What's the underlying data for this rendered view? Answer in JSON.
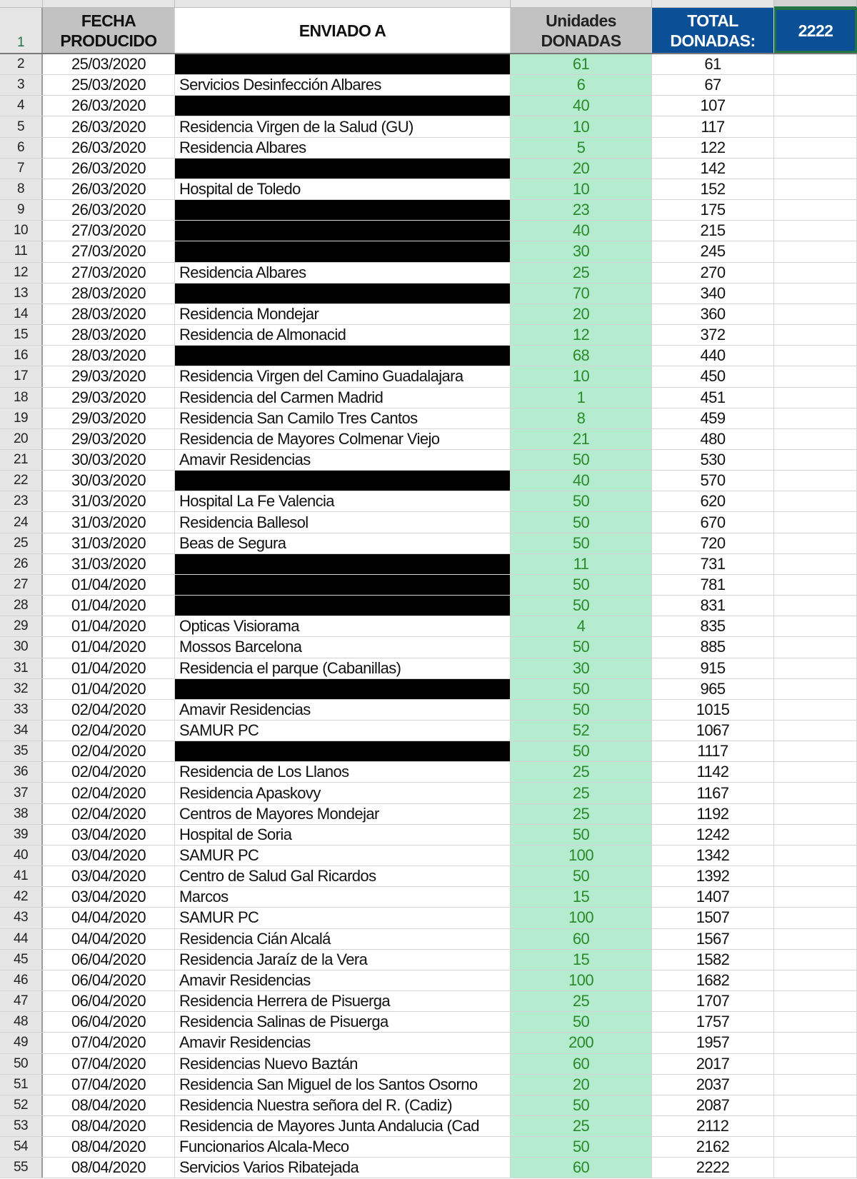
{
  "header": {
    "row_number": "1",
    "fecha": "FECHA PRODUCIDO",
    "enviado": "ENVIADO A",
    "unidades": "Unidades DONADAS",
    "total_label": "TOTAL DONADAS:",
    "total_value": "2222"
  },
  "colors": {
    "units_fill": "#b5ecd0",
    "units_text": "#2a8a2a",
    "total_fill": "#0b4f96",
    "header_gray": "#c2c2c2",
    "redaction": "#000000"
  },
  "rows": [
    {
      "n": "2",
      "date": "25/03/2020",
      "to": "",
      "redacted": true,
      "units": "61",
      "total": "61"
    },
    {
      "n": "3",
      "date": "25/03/2020",
      "to": "Servicios Desinfección Albares",
      "units": "6",
      "total": "67"
    },
    {
      "n": "4",
      "date": "26/03/2020",
      "to": "",
      "redacted": true,
      "units": "40",
      "total": "107"
    },
    {
      "n": "5",
      "date": "26/03/2020",
      "to": "Residencia Virgen de la Salud (GU)",
      "units": "10",
      "total": "117"
    },
    {
      "n": "6",
      "date": "26/03/2020",
      "to": "Residencia Albares",
      "units": "5",
      "total": "122"
    },
    {
      "n": "7",
      "date": "26/03/2020",
      "to": "",
      "redacted": true,
      "units": "20",
      "total": "142"
    },
    {
      "n": "8",
      "date": "26/03/2020",
      "to": "Hospital de Toledo",
      "units": "10",
      "total": "152"
    },
    {
      "n": "9",
      "date": "26/03/2020",
      "to": "",
      "redacted": true,
      "units": "23",
      "total": "175"
    },
    {
      "n": "10",
      "date": "27/03/2020",
      "to": "",
      "redacted": true,
      "units": "40",
      "total": "215"
    },
    {
      "n": "11",
      "date": "27/03/2020",
      "to": "",
      "redacted": true,
      "units": "30",
      "total": "245"
    },
    {
      "n": "12",
      "date": "27/03/2020",
      "to": "Residencia Albares",
      "units": "25",
      "total": "270"
    },
    {
      "n": "13",
      "date": "28/03/2020",
      "to": "",
      "redacted": true,
      "units": "70",
      "total": "340"
    },
    {
      "n": "14",
      "date": "28/03/2020",
      "to": "Residencia Mondejar",
      "units": "20",
      "total": "360"
    },
    {
      "n": "15",
      "date": "28/03/2020",
      "to": "Residencia de Almonacid",
      "units": "12",
      "total": "372"
    },
    {
      "n": "16",
      "date": "28/03/2020",
      "to": "",
      "redacted": true,
      "units": "68",
      "total": "440"
    },
    {
      "n": "17",
      "date": "29/03/2020",
      "to": "Residencia Virgen del Camino Guadalajara",
      "units": "10",
      "total": "450"
    },
    {
      "n": "18",
      "date": "29/03/2020",
      "to": "Residencia del Carmen Madrid",
      "units": "1",
      "total": "451"
    },
    {
      "n": "19",
      "date": "29/03/2020",
      "to": "Residencia San Camilo Tres Cantos",
      "units": "8",
      "total": "459"
    },
    {
      "n": "20",
      "date": "29/03/2020",
      "to": "Residencia de Mayores Colmenar Viejo",
      "units": "21",
      "total": "480"
    },
    {
      "n": "21",
      "date": "30/03/2020",
      "to": "Amavir Residencias",
      "units": "50",
      "total": "530"
    },
    {
      "n": "22",
      "date": "30/03/2020",
      "to": "",
      "redacted": true,
      "units": "40",
      "total": "570"
    },
    {
      "n": "23",
      "date": "31/03/2020",
      "to": "Hospital La Fe Valencia",
      "units": "50",
      "total": "620"
    },
    {
      "n": "24",
      "date": "31/03/2020",
      "to": "Residencia Ballesol",
      "units": "50",
      "total": "670"
    },
    {
      "n": "25",
      "date": "31/03/2020",
      "to": "Beas de Segura",
      "units": "50",
      "total": "720"
    },
    {
      "n": "26",
      "date": "31/03/2020",
      "to": "",
      "redacted": true,
      "units": "11",
      "total": "731"
    },
    {
      "n": "27",
      "date": "01/04/2020",
      "to": "",
      "redacted": true,
      "units": "50",
      "total": "781"
    },
    {
      "n": "28",
      "date": "01/04/2020",
      "to": "",
      "redacted": true,
      "units": "50",
      "total": "831"
    },
    {
      "n": "29",
      "date": "01/04/2020",
      "to": "Opticas Visiorama",
      "units": "4",
      "total": "835"
    },
    {
      "n": "30",
      "date": "01/04/2020",
      "to": "Mossos Barcelona",
      "units": "50",
      "total": "885"
    },
    {
      "n": "31",
      "date": "01/04/2020",
      "to": "Residencia el parque (Cabanillas)",
      "units": "30",
      "total": "915"
    },
    {
      "n": "32",
      "date": "01/04/2020",
      "to": "",
      "redacted": true,
      "units": "50",
      "total": "965"
    },
    {
      "n": "33",
      "date": "02/04/2020",
      "to": "Amavir Residencias",
      "units": "50",
      "total": "1015"
    },
    {
      "n": "34",
      "date": "02/04/2020",
      "to": "SAMUR PC",
      "units": "52",
      "total": "1067"
    },
    {
      "n": "35",
      "date": "02/04/2020",
      "to": "",
      "redacted": true,
      "units": "50",
      "total": "1117"
    },
    {
      "n": "36",
      "date": "02/04/2020",
      "to": "Residencia de Los Llanos",
      "units": "25",
      "total": "1142"
    },
    {
      "n": "37",
      "date": "02/04/2020",
      "to": "Residencia Apaskovy",
      "units": "25",
      "total": "1167"
    },
    {
      "n": "38",
      "date": "02/04/2020",
      "to": "Centros de Mayores Mondejar",
      "units": "25",
      "total": "1192"
    },
    {
      "n": "39",
      "date": "03/04/2020",
      "to": "Hospital de Soria",
      "units": "50",
      "total": "1242"
    },
    {
      "n": "40",
      "date": "03/04/2020",
      "to": "SAMUR PC",
      "units": "100",
      "total": "1342"
    },
    {
      "n": "41",
      "date": "03/04/2020",
      "to": "Centro de Salud Gal Ricardos",
      "units": "50",
      "total": "1392"
    },
    {
      "n": "42",
      "date": "03/04/2020",
      "to": "Marcos",
      "units": "15",
      "total": "1407"
    },
    {
      "n": "43",
      "date": "04/04/2020",
      "to": "SAMUR PC",
      "units": "100",
      "total": "1507"
    },
    {
      "n": "44",
      "date": "04/04/2020",
      "to": "Residencia Cián Alcalá",
      "units": "60",
      "total": "1567"
    },
    {
      "n": "45",
      "date": "06/04/2020",
      "to": "Residencia Jaraíz de la Vera",
      "units": "15",
      "total": "1582"
    },
    {
      "n": "46",
      "date": "06/04/2020",
      "to": "Amavir Residencias",
      "units": "100",
      "total": "1682"
    },
    {
      "n": "47",
      "date": "06/04/2020",
      "to": "Residencia Herrera de Pisuerga",
      "units": "25",
      "total": "1707"
    },
    {
      "n": "48",
      "date": "06/04/2020",
      "to": "Residencia Salinas de Pisuerga",
      "units": "50",
      "total": "1757"
    },
    {
      "n": "49",
      "date": "07/04/2020",
      "to": "Amavir Residencias",
      "units": "200",
      "total": "1957"
    },
    {
      "n": "50",
      "date": "07/04/2020",
      "to": "Residencias Nuevo Baztán",
      "units": "60",
      "total": "2017"
    },
    {
      "n": "51",
      "date": "07/04/2020",
      "to": "Residencia San Miguel de los Santos Osorno",
      "units": "20",
      "total": "2037"
    },
    {
      "n": "52",
      "date": "08/04/2020",
      "to": "Residencia Nuestra señora del R. (Cadiz)",
      "units": "50",
      "total": "2087"
    },
    {
      "n": "53",
      "date": "08/04/2020",
      "to": "Residencia de Mayores Junta Andalucia (Cad",
      "units": "25",
      "total": "2112"
    },
    {
      "n": "54",
      "date": "08/04/2020",
      "to": "Funcionarios Alcala-Meco",
      "units": "50",
      "total": "2162"
    },
    {
      "n": "55",
      "date": "08/04/2020",
      "to": "Servicios Varios Ribatejada",
      "units": "60",
      "total": "2222"
    }
  ]
}
